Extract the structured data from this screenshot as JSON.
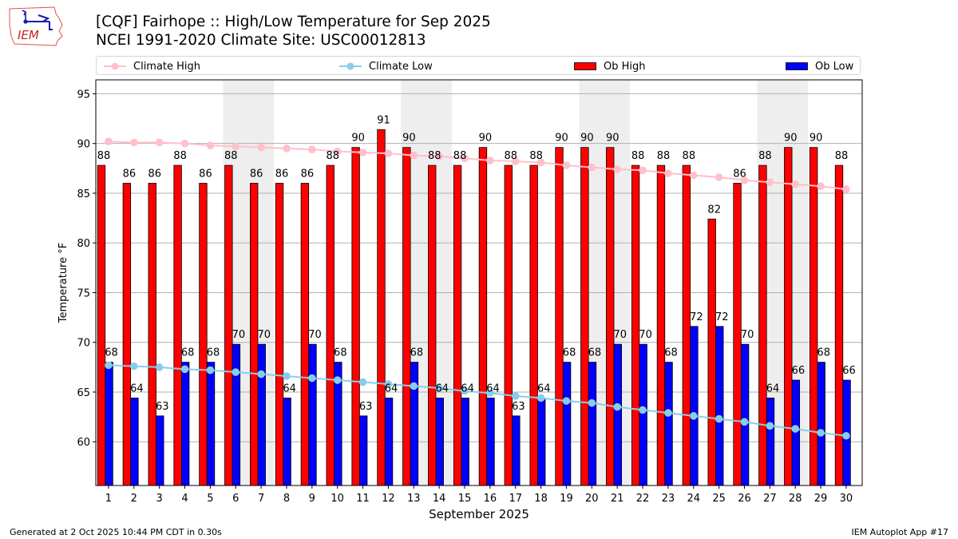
{
  "header": {
    "title_line1": "[CQF] Fairhope :: High/Low Temperature for Sep 2025",
    "title_line2": "NCEI 1991-2020 Climate Site: USC00012813",
    "logo_text": "IEM"
  },
  "footer": {
    "generated": "Generated at 2 Oct 2025 10:44 PM CDT in 0.30s",
    "app": "IEM Autoplot App #17"
  },
  "colors": {
    "ob_high": "#ff0000",
    "ob_low": "#0000ff",
    "climate_high": "#ffc0cb",
    "climate_low": "#87ceeb",
    "weekend_shade": "#eeeeee",
    "grid": "#b0b0b0"
  },
  "chart_data": {
    "type": "bar",
    "title": "[CQF] Fairhope :: High/Low Temperature for Sep 2025",
    "subtitle": "NCEI 1991-2020 Climate Site: USC00012813",
    "xlabel": "September 2025",
    "ylabel": "Temperature °F",
    "xlim": [
      0.5,
      30.63
    ],
    "ylim": [
      55.6,
      96.4
    ],
    "yticks": [
      60,
      65,
      70,
      75,
      80,
      85,
      90,
      95
    ],
    "grid": "y",
    "legend_position": "top",
    "legend": [
      "Climate High",
      "Climate Low",
      "Ob High",
      "Ob Low"
    ],
    "categories": [
      1,
      2,
      3,
      4,
      5,
      6,
      7,
      8,
      9,
      10,
      11,
      12,
      13,
      14,
      15,
      16,
      17,
      18,
      19,
      20,
      21,
      22,
      23,
      24,
      25,
      26,
      27,
      28,
      29,
      30
    ],
    "weekend_shading_start_days": [
      6,
      13,
      20,
      27
    ],
    "series": [
      {
        "name": "Ob High",
        "type": "bar",
        "values": [
          87.8,
          86.0,
          86.0,
          87.8,
          86.0,
          87.8,
          86.0,
          86.0,
          86.0,
          87.8,
          89.6,
          91.4,
          89.6,
          87.8,
          87.8,
          89.6,
          87.8,
          87.8,
          89.6,
          89.6,
          89.6,
          87.8,
          87.8,
          87.8,
          82.4,
          86.0,
          87.8,
          89.6,
          89.6,
          87.8
        ],
        "labels": [
          "88",
          "86",
          "86",
          "88",
          "86",
          "88",
          "86",
          "86",
          "86",
          "88",
          "90",
          "91",
          "90",
          "88",
          "88",
          "90",
          "88",
          "88",
          "90",
          "90",
          "90",
          "88",
          "88",
          "88",
          "82",
          "86",
          "88",
          "90",
          "90",
          "88"
        ]
      },
      {
        "name": "Ob Low",
        "type": "bar",
        "values": [
          68.0,
          64.4,
          62.6,
          68.0,
          68.0,
          69.8,
          69.8,
          64.4,
          69.8,
          68.0,
          62.6,
          64.4,
          68.0,
          64.4,
          64.4,
          64.4,
          62.6,
          64.4,
          68.0,
          68.0,
          69.8,
          69.8,
          68.0,
          71.6,
          71.6,
          69.8,
          64.4,
          66.2,
          68.0,
          66.2
        ],
        "labels": [
          "68",
          "64",
          "63",
          "68",
          "68",
          "70",
          "70",
          "64",
          "70",
          "68",
          "63",
          "64",
          "68",
          "64",
          "64",
          "64",
          "63",
          "64",
          "68",
          "68",
          "70",
          "70",
          "68",
          "72",
          "72",
          "70",
          "64",
          "66",
          "68",
          "66"
        ]
      },
      {
        "name": "Climate High",
        "type": "line",
        "values": [
          90.2,
          90.1,
          90.1,
          90.0,
          89.8,
          89.7,
          89.6,
          89.5,
          89.4,
          89.2,
          89.1,
          89.0,
          88.8,
          88.7,
          88.5,
          88.3,
          88.2,
          88.1,
          87.8,
          87.6,
          87.4,
          87.3,
          87.0,
          86.8,
          86.6,
          86.3,
          86.1,
          85.9,
          85.7,
          85.4
        ]
      },
      {
        "name": "Climate Low",
        "type": "line",
        "values": [
          67.7,
          67.6,
          67.5,
          67.3,
          67.2,
          67.0,
          66.8,
          66.6,
          66.4,
          66.2,
          66.0,
          65.8,
          65.6,
          65.4,
          65.1,
          64.9,
          64.6,
          64.4,
          64.1,
          63.9,
          63.5,
          63.2,
          62.9,
          62.6,
          62.3,
          62.0,
          61.6,
          61.3,
          60.9,
          60.6
        ]
      }
    ]
  }
}
